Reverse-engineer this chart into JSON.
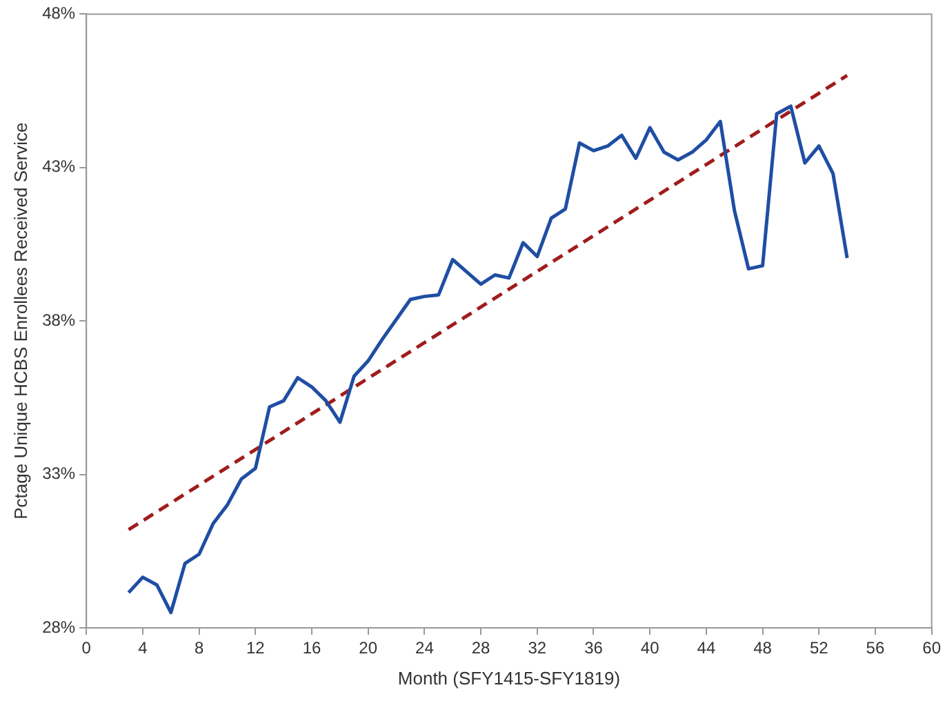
{
  "chart_data": {
    "type": "line",
    "xlabel": "Month (SFY1415-SFY1819)",
    "ylabel": "Pctage Unique HCBS Enrollees Received Service",
    "x": [
      3,
      4,
      5,
      6,
      7,
      8,
      9,
      10,
      11,
      12,
      13,
      14,
      15,
      16,
      17,
      18,
      19,
      20,
      21,
      22,
      23,
      24,
      25,
      26,
      27,
      28,
      29,
      30,
      31,
      32,
      33,
      34,
      35,
      36,
      37,
      38,
      39,
      40,
      41,
      42,
      43,
      44,
      45,
      46,
      47,
      48,
      49,
      50,
      51,
      52,
      53,
      54
    ],
    "series": [
      {
        "color": "#1f4ea3",
        "line_style": "solid",
        "values": [
          29.15,
          29.65,
          29.4,
          28.5,
          30.1,
          30.4,
          31.4,
          32.0,
          32.85,
          33.2,
          35.2,
          35.4,
          36.15,
          35.85,
          35.4,
          34.7,
          36.2,
          36.7,
          37.4,
          38.05,
          38.7,
          38.8,
          38.85,
          40.0,
          39.6,
          39.2,
          39.5,
          39.4,
          40.55,
          40.1,
          41.35,
          41.65,
          43.8,
          43.55,
          43.7,
          44.05,
          43.3,
          44.3,
          43.5,
          43.25,
          43.5,
          43.9,
          44.5,
          41.6,
          39.7,
          39.8,
          44.75,
          45.0,
          43.15,
          43.7,
          42.8,
          40.05
        ]
      },
      {
        "type": "line",
        "color": "#a01c1c",
        "line_style": "dashed",
        "x": [
          3,
          54
        ],
        "values": [
          31.2,
          46.0
        ]
      }
    ],
    "xlim": [
      0,
      60
    ],
    "xticks": [
      0,
      4,
      8,
      12,
      16,
      20,
      24,
      28,
      32,
      36,
      40,
      44,
      48,
      52,
      56,
      60
    ],
    "ylim": [
      28,
      48
    ],
    "yticks": [
      {
        "value": 28,
        "label": "28%"
      },
      {
        "value": 33,
        "label": "33%"
      },
      {
        "value": 38,
        "label": "38%"
      },
      {
        "value": 43,
        "label": "43%"
      },
      {
        "value": 48,
        "label": "48%"
      }
    ],
    "grid": false,
    "legend": false,
    "marker": "none"
  }
}
